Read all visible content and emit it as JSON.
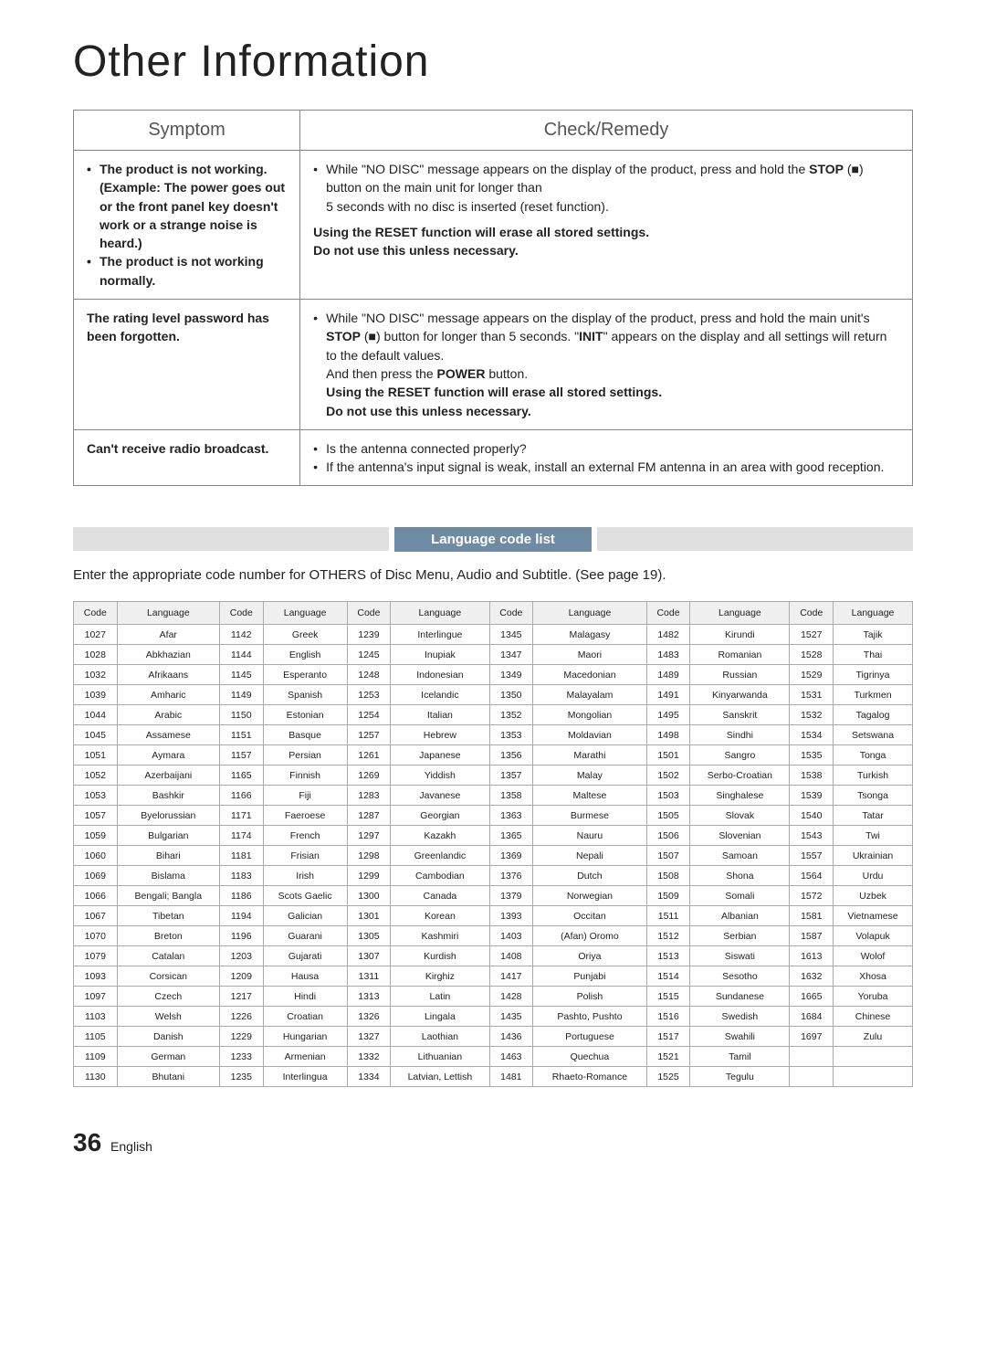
{
  "page_title": "Other Information",
  "troubleshoot": {
    "header_symptom": "Symptom",
    "header_remedy": "Check/Remedy",
    "rows": [
      {
        "symptom_html": "<ul class='bullet'><li><span class='bold'>The product is not working. (Example: The power goes out or the front panel key doesn't work or a strange noise is heard.)</span></li><li><span class='bold'>The product is not working normally.</span></li></ul>",
        "remedy_html": "<ul class='bullet'><li>While \"NO DISC\" message appears on the display of the product, press and hold the <span class='bold'>STOP</span> (■) button on the main unit for longer than<br>5 seconds with no disc is inserted (reset function).</li></ul><div class='bold' style='margin-top:8px'>Using the RESET function will erase all stored settings.<br>Do not use this unless necessary.</div>"
      },
      {
        "symptom_html": "<span class='bold'>The rating level password has been forgotten.</span>",
        "remedy_html": "<ul class='bullet'><li>While \"NO DISC\" message appears on the display of the product, press and hold the main unit's <span class='bold'>STOP</span> (■) button for longer than 5 seconds. \"<span class='bold'>INIT</span>\" appears on the display and all settings will return to the default values.<br>And then press the <span class='bold'>POWER</span> button.<br><span class='bold'>Using the RESET function will erase all stored settings.<br>Do not use this unless necessary.</span></li></ul>"
      },
      {
        "symptom_html": "<span class='bold'>Can't receive radio broadcast.</span>",
        "remedy_html": "<ul class='bullet'><li>Is the antenna connected properly?</li><li>If the antenna's input signal is weak, install an external FM antenna in an area with good reception.</li></ul>"
      }
    ]
  },
  "section_title": "Language code list",
  "intro_text": "Enter the appropriate code number for OTHERS of Disc Menu, Audio and Subtitle. (See page 19).",
  "lang_headers": [
    "Code",
    "Language",
    "Code",
    "Language",
    "Code",
    "Language",
    "Code",
    "Language",
    "Code",
    "Language",
    "Code",
    "Language"
  ],
  "lang_rows": [
    [
      "1027",
      "Afar",
      "1142",
      "Greek",
      "1239",
      "Interlingue",
      "1345",
      "Malagasy",
      "1482",
      "Kirundi",
      "1527",
      "Tajik"
    ],
    [
      "1028",
      "Abkhazian",
      "1144",
      "English",
      "1245",
      "Inupiak",
      "1347",
      "Maori",
      "1483",
      "Romanian",
      "1528",
      "Thai"
    ],
    [
      "1032",
      "Afrikaans",
      "1145",
      "Esperanto",
      "1248",
      "Indonesian",
      "1349",
      "Macedonian",
      "1489",
      "Russian",
      "1529",
      "Tigrinya"
    ],
    [
      "1039",
      "Amharic",
      "1149",
      "Spanish",
      "1253",
      "Icelandic",
      "1350",
      "Malayalam",
      "1491",
      "Kinyarwanda",
      "1531",
      "Turkmen"
    ],
    [
      "1044",
      "Arabic",
      "1150",
      "Estonian",
      "1254",
      "Italian",
      "1352",
      "Mongolian",
      "1495",
      "Sanskrit",
      "1532",
      "Tagalog"
    ],
    [
      "1045",
      "Assamese",
      "1151",
      "Basque",
      "1257",
      "Hebrew",
      "1353",
      "Moldavian",
      "1498",
      "Sindhi",
      "1534",
      "Setswana"
    ],
    [
      "1051",
      "Aymara",
      "1157",
      "Persian",
      "1261",
      "Japanese",
      "1356",
      "Marathi",
      "1501",
      "Sangro",
      "1535",
      "Tonga"
    ],
    [
      "1052",
      "Azerbaijani",
      "1165",
      "Finnish",
      "1269",
      "Yiddish",
      "1357",
      "Malay",
      "1502",
      "Serbo-Croatian",
      "1538",
      "Turkish"
    ],
    [
      "1053",
      "Bashkir",
      "1166",
      "Fiji",
      "1283",
      "Javanese",
      "1358",
      "Maltese",
      "1503",
      "Singhalese",
      "1539",
      "Tsonga"
    ],
    [
      "1057",
      "Byelorussian",
      "1171",
      "Faeroese",
      "1287",
      "Georgian",
      "1363",
      "Burmese",
      "1505",
      "Slovak",
      "1540",
      "Tatar"
    ],
    [
      "1059",
      "Bulgarian",
      "1174",
      "French",
      "1297",
      "Kazakh",
      "1365",
      "Nauru",
      "1506",
      "Slovenian",
      "1543",
      "Twi"
    ],
    [
      "1060",
      "Bihari",
      "1181",
      "Frisian",
      "1298",
      "Greenlandic",
      "1369",
      "Nepali",
      "1507",
      "Samoan",
      "1557",
      "Ukrainian"
    ],
    [
      "1069",
      "Bislama",
      "1183",
      "Irish",
      "1299",
      "Cambodian",
      "1376",
      "Dutch",
      "1508",
      "Shona",
      "1564",
      "Urdu"
    ],
    [
      "1066",
      "Bengali; Bangla",
      "1186",
      "Scots Gaelic",
      "1300",
      "Canada",
      "1379",
      "Norwegian",
      "1509",
      "Somali",
      "1572",
      "Uzbek"
    ],
    [
      "1067",
      "Tibetan",
      "1194",
      "Galician",
      "1301",
      "Korean",
      "1393",
      "Occitan",
      "1511",
      "Albanian",
      "1581",
      "Vietnamese"
    ],
    [
      "1070",
      "Breton",
      "1196",
      "Guarani",
      "1305",
      "Kashmiri",
      "1403",
      "(Afan) Oromo",
      "1512",
      "Serbian",
      "1587",
      "Volapuk"
    ],
    [
      "1079",
      "Catalan",
      "1203",
      "Gujarati",
      "1307",
      "Kurdish",
      "1408",
      "Oriya",
      "1513",
      "Siswati",
      "1613",
      "Wolof"
    ],
    [
      "1093",
      "Corsican",
      "1209",
      "Hausa",
      "1311",
      "Kirghiz",
      "1417",
      "Punjabi",
      "1514",
      "Sesotho",
      "1632",
      "Xhosa"
    ],
    [
      "1097",
      "Czech",
      "1217",
      "Hindi",
      "1313",
      "Latin",
      "1428",
      "Polish",
      "1515",
      "Sundanese",
      "1665",
      "Yoruba"
    ],
    [
      "1103",
      "Welsh",
      "1226",
      "Croatian",
      "1326",
      "Lingala",
      "1435",
      "Pashto, Pushto",
      "1516",
      "Swedish",
      "1684",
      "Chinese"
    ],
    [
      "1105",
      "Danish",
      "1229",
      "Hungarian",
      "1327",
      "Laothian",
      "1436",
      "Portuguese",
      "1517",
      "Swahili",
      "1697",
      "Zulu"
    ],
    [
      "1109",
      "German",
      "1233",
      "Armenian",
      "1332",
      "Lithuanian",
      "1463",
      "Quechua",
      "1521",
      "Tamil",
      "",
      ""
    ],
    [
      "1130",
      "Bhutani",
      "1235",
      "Interlingua",
      "1334",
      "Latvian, Lettish",
      "1481",
      "Rhaeto-Romance",
      "1525",
      "Tegulu",
      "",
      ""
    ]
  ],
  "footer": {
    "page_number": "36",
    "page_lang": "English"
  },
  "colors": {
    "section_bar_bg": "#e0e0e0",
    "section_title_bg": "#6f8aa3",
    "table_border": "#888888"
  }
}
